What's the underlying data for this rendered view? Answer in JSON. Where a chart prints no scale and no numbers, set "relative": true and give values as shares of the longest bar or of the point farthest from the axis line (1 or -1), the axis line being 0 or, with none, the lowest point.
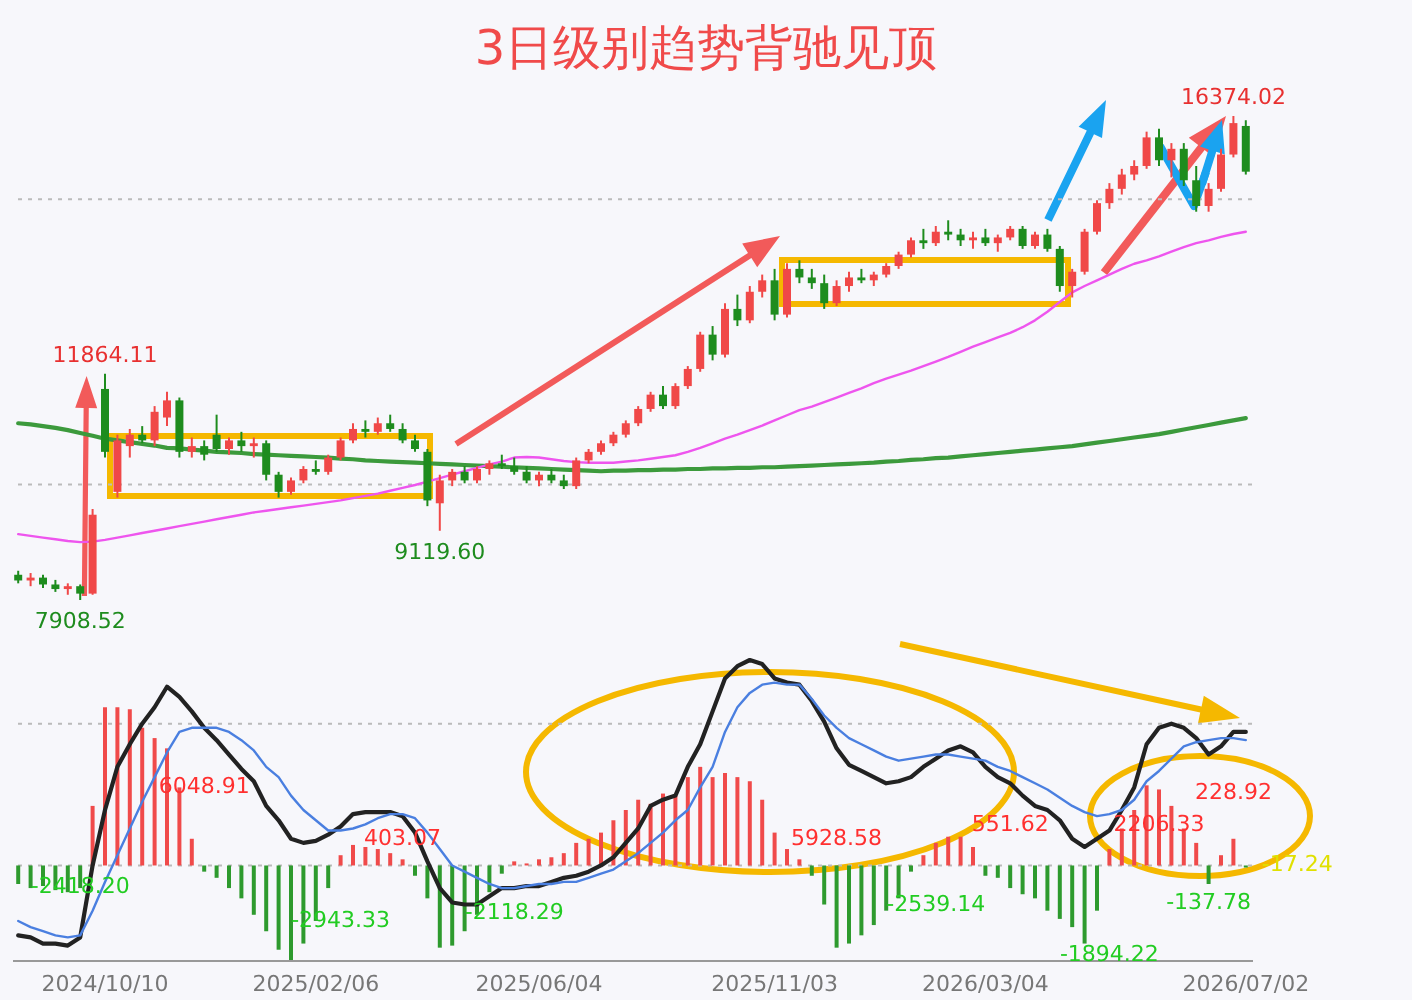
{
  "chart_data": [
    {
      "type": "candlestick",
      "title": "3日级别趋势背驰见顶",
      "tick_labels": false,
      "categories": [
        null,
        null,
        null,
        null,
        null,
        null,
        null,
        null,
        null,
        null,
        null,
        null,
        null,
        null,
        null,
        null,
        null,
        null,
        null,
        null,
        null,
        null,
        null,
        null,
        null,
        null,
        null,
        null,
        null,
        null,
        null,
        null,
        null,
        null,
        null,
        null,
        null,
        null,
        null,
        null,
        null,
        null,
        null,
        null,
        null,
        null,
        null,
        null,
        null,
        null,
        null,
        null,
        null,
        null,
        null,
        null,
        null,
        null,
        null,
        null,
        null,
        null,
        null,
        null,
        null,
        null,
        null,
        null,
        null,
        null,
        null,
        null,
        null,
        null,
        null,
        null,
        null,
        null,
        null,
        null,
        null,
        null,
        null,
        null,
        null,
        null,
        null,
        null,
        null,
        null,
        null,
        null,
        null,
        null,
        null,
        null,
        null,
        null,
        null,
        null
      ],
      "ohlc": [
        [
          8350,
          8420,
          8200,
          8250
        ],
        [
          8250,
          8380,
          8150,
          8300
        ],
        [
          8300,
          8350,
          8120,
          8180
        ],
        [
          8180,
          8260,
          8050,
          8100
        ],
        [
          8100,
          8200,
          8000,
          8150
        ],
        [
          8150,
          8180,
          7908.52,
          8020
        ],
        [
          8020,
          9500,
          8000,
          9400
        ],
        [
          11600,
          11864.11,
          10400,
          10500
        ],
        [
          9800,
          10800,
          9700,
          10700
        ],
        [
          10600,
          10900,
          10400,
          10800
        ],
        [
          10800,
          10950,
          10650,
          10700
        ],
        [
          10700,
          11300,
          10600,
          11200
        ],
        [
          11100,
          11550,
          10950,
          11400
        ],
        [
          11400,
          11450,
          10400,
          10500
        ],
        [
          10500,
          10750,
          10400,
          10600
        ],
        [
          10600,
          10700,
          10350,
          10450
        ],
        [
          10800,
          11150,
          10500,
          10550
        ],
        [
          10550,
          10750,
          10450,
          10700
        ],
        [
          10700,
          10850,
          10500,
          10600
        ],
        [
          10600,
          10750,
          10400,
          10650
        ],
        [
          10650,
          10700,
          10000,
          10100
        ],
        [
          10100,
          10150,
          9700,
          9800
        ],
        [
          9800,
          10050,
          9750,
          10000
        ],
        [
          10000,
          10250,
          9950,
          10200
        ],
        [
          10200,
          10350,
          10100,
          10150
        ],
        [
          10150,
          10450,
          10100,
          10400
        ],
        [
          10400,
          10750,
          10350,
          10700
        ],
        [
          10700,
          11000,
          10650,
          10900
        ],
        [
          10900,
          11050,
          10750,
          10850
        ],
        [
          10850,
          11100,
          10800,
          11000
        ],
        [
          11000,
          11150,
          10850,
          10900
        ],
        [
          10900,
          11000,
          10650,
          10700
        ],
        [
          10700,
          10800,
          10500,
          10550
        ],
        [
          10500,
          10550,
          9550,
          9650
        ],
        [
          9600,
          10100,
          9119.6,
          10000
        ],
        [
          10000,
          10200,
          9900,
          10150
        ],
        [
          10150,
          10250,
          9950,
          10000
        ],
        [
          10000,
          10250,
          9950,
          10200
        ],
        [
          10200,
          10350,
          10100,
          10300
        ],
        [
          10300,
          10450,
          10200,
          10250
        ],
        [
          10250,
          10400,
          10100,
          10150
        ],
        [
          10150,
          10250,
          9950,
          10000
        ],
        [
          10000,
          10150,
          9900,
          10100
        ],
        [
          10100,
          10200,
          9950,
          10000
        ],
        [
          10000,
          10100,
          9850,
          9900
        ],
        [
          9900,
          10400,
          9850,
          10350
        ],
        [
          10350,
          10550,
          10300,
          10500
        ],
        [
          10500,
          10700,
          10450,
          10650
        ],
        [
          10650,
          10850,
          10600,
          10800
        ],
        [
          10800,
          11050,
          10750,
          11000
        ],
        [
          11000,
          11300,
          10950,
          11250
        ],
        [
          11250,
          11550,
          11200,
          11500
        ],
        [
          11500,
          11650,
          11250,
          11300
        ],
        [
          11300,
          11700,
          11250,
          11650
        ],
        [
          11650,
          12000,
          11600,
          11950
        ],
        [
          11950,
          12600,
          11900,
          12550
        ],
        [
          12550,
          12700,
          12100,
          12200
        ],
        [
          12200,
          13100,
          12150,
          13000
        ],
        [
          13000,
          13250,
          12700,
          12800
        ],
        [
          12800,
          13400,
          12750,
          13300
        ],
        [
          13300,
          13600,
          13200,
          13500
        ],
        [
          13500,
          13700,
          12800,
          12900
        ],
        [
          12900,
          13800,
          12850,
          13700
        ],
        [
          13700,
          13850,
          13450,
          13550
        ],
        [
          13550,
          13700,
          13350,
          13450
        ],
        [
          13450,
          13600,
          13000,
          13100
        ],
        [
          13100,
          13500,
          13050,
          13400
        ],
        [
          13400,
          13650,
          13300,
          13550
        ],
        [
          13550,
          13700,
          13450,
          13500
        ],
        [
          13500,
          13650,
          13400,
          13600
        ],
        [
          13600,
          13800,
          13550,
          13750
        ],
        [
          13750,
          14000,
          13700,
          13950
        ],
        [
          13950,
          14250,
          13900,
          14200
        ],
        [
          14200,
          14400,
          14050,
          14150
        ],
        [
          14150,
          14450,
          14100,
          14350
        ],
        [
          14350,
          14550,
          14200,
          14300
        ],
        [
          14300,
          14400,
          14100,
          14200
        ],
        [
          14200,
          14350,
          14050,
          14250
        ],
        [
          14250,
          14400,
          14100,
          14150
        ],
        [
          14150,
          14300,
          14000,
          14250
        ],
        [
          14250,
          14450,
          14200,
          14400
        ],
        [
          14400,
          14450,
          14050,
          14100
        ],
        [
          14100,
          14350,
          14050,
          14300
        ],
        [
          14300,
          14400,
          14000,
          14050
        ],
        [
          14050,
          14100,
          13300,
          13400
        ],
        [
          13400,
          13700,
          13200,
          13650
        ],
        [
          13650,
          14400,
          13600,
          14350
        ],
        [
          14350,
          14900,
          14300,
          14850
        ],
        [
          14850,
          15200,
          14750,
          15100
        ],
        [
          15100,
          15450,
          15000,
          15350
        ],
        [
          15350,
          15600,
          15250,
          15500
        ],
        [
          15500,
          16100,
          15450,
          16000
        ],
        [
          16000,
          16150,
          15500,
          15600
        ],
        [
          15600,
          15900,
          15300,
          15800
        ],
        [
          15800,
          15900,
          15150,
          15250
        ],
        [
          15250,
          15500,
          14700,
          14800
        ],
        [
          14800,
          15200,
          14700,
          15100
        ],
        [
          15100,
          15800,
          15050,
          15700
        ],
        [
          15700,
          16374.02,
          15650,
          16250
        ],
        [
          16200,
          16300,
          15350,
          15400
        ]
      ],
      "colors": [
        "#1e8c1e",
        "#f04848",
        "#1e8c1e",
        "#1e8c1e",
        "#f04848",
        "#1e8c1e",
        "#f04848",
        "#1e8c1e",
        "#f04848",
        "#f04848",
        "#1e8c1e",
        "#f04848",
        "#f04848",
        "#1e8c1e",
        "#f04848",
        "#1e8c1e",
        "#1e8c1e",
        "#f04848",
        "#1e8c1e",
        "#f04848",
        "#1e8c1e",
        "#1e8c1e",
        "#f04848",
        "#f04848",
        "#1e8c1e",
        "#f04848",
        "#f04848",
        "#f04848",
        "#1e8c1e",
        "#f04848",
        "#1e8c1e",
        "#1e8c1e",
        "#1e8c1e",
        "#1e8c1e",
        "#f04848",
        "#f04848",
        "#1e8c1e",
        "#f04848",
        "#f04848",
        "#1e8c1e",
        "#1e8c1e",
        "#1e8c1e",
        "#f04848",
        "#1e8c1e",
        "#1e8c1e",
        "#f04848",
        "#f04848",
        "#f04848",
        "#f04848",
        "#f04848",
        "#f04848",
        "#f04848",
        "#1e8c1e",
        "#f04848",
        "#f04848",
        "#f04848",
        "#1e8c1e",
        "#f04848",
        "#1e8c1e",
        "#f04848",
        "#f04848",
        "#1e8c1e",
        "#f04848",
        "#1e8c1e",
        "#1e8c1e",
        "#1e8c1e",
        "#f04848",
        "#f04848",
        "#1e8c1e",
        "#f04848",
        "#f04848",
        "#f04848",
        "#f04848",
        "#1e8c1e",
        "#f04848",
        "#1e8c1e",
        "#1e8c1e",
        "#f04848",
        "#1e8c1e",
        "#f04848",
        "#f04848",
        "#1e8c1e",
        "#f04848",
        "#1e8c1e",
        "#1e8c1e",
        "#f04848",
        "#f04848",
        "#f04848",
        "#f04848",
        "#f04848",
        "#f04848",
        "#f04848",
        "#1e8c1e",
        "#f04848",
        "#1e8c1e",
        "#1e8c1e",
        "#f04848",
        "#f04848",
        "#f04848",
        "#1e8c1e"
      ],
      "series": [
        {
          "type": "line",
          "color": "#3c9a3c",
          "values": [
            11000,
            10980,
            10950,
            10920,
            10880,
            10830,
            10780,
            10730,
            10700,
            10670,
            10640,
            10610,
            10570,
            10560,
            10540,
            10520,
            10500,
            10490,
            10480,
            10460,
            10450,
            10440,
            10430,
            10420,
            10410,
            10400,
            10380,
            10370,
            10350,
            10340,
            10330,
            10320,
            10310,
            10300,
            10290,
            10280,
            10270,
            10260,
            10250,
            10240,
            10230,
            10220,
            10210,
            10200,
            10190,
            10180,
            10170,
            10160,
            10170,
            10170,
            10180,
            10180,
            10190,
            10190,
            10200,
            10200,
            10210,
            10210,
            10220,
            10220,
            10230,
            10230,
            10240,
            10250,
            10260,
            10270,
            10280,
            10290,
            10300,
            10310,
            10330,
            10340,
            10360,
            10370,
            10390,
            10400,
            10420,
            10440,
            10460,
            10480,
            10500,
            10520,
            10540,
            10560,
            10580,
            10600,
            10630,
            10660,
            10690,
            10720,
            10750,
            10780,
            10810,
            10850,
            10890,
            10930,
            10970,
            11010,
            11050,
            11090
          ]
        },
        {
          "type": "line",
          "color": "#ee55ee",
          "values": [
            9060,
            9030,
            9000,
            8970,
            8940,
            8920,
            8930,
            8960,
            9000,
            9040,
            9080,
            9120,
            9160,
            9200,
            9240,
            9280,
            9320,
            9360,
            9400,
            9440,
            9470,
            9500,
            9530,
            9560,
            9590,
            9620,
            9650,
            9690,
            9730,
            9770,
            9820,
            9870,
            9920,
            9980,
            10040,
            10100,
            10160,
            10220,
            10280,
            10330,
            10400,
            10410,
            10400,
            10370,
            10340,
            10320,
            10310,
            10310,
            10310,
            10330,
            10350,
            10380,
            10410,
            10440,
            10500,
            10570,
            10650,
            10730,
            10800,
            10880,
            10960,
            11050,
            11140,
            11230,
            11290,
            11370,
            11450,
            11530,
            11610,
            11700,
            11780,
            11850,
            11920,
            12000,
            12080,
            12160,
            12250,
            12340,
            12420,
            12500,
            12580,
            12680,
            12800,
            12950,
            13120,
            13290,
            13400,
            13500,
            13600,
            13700,
            13790,
            13850,
            13920,
            14000,
            14080,
            14150,
            14200,
            14260,
            14310,
            14350
          ]
        }
      ],
      "ref_lines": [
        {
          "axis": "y",
          "value": 9930,
          "line_style": "dotted",
          "color": "#bbbbbb"
        },
        {
          "axis": "y",
          "value": 14920,
          "line_style": "dotted",
          "color": "#bbbbbb"
        }
      ],
      "annotations": [
        "11864.11",
        "9119.60",
        "7908.52",
        "16374.02"
      ]
    },
    {
      "type": "bar",
      "relative": true,
      "tick_labels": "x",
      "categories": [
        null,
        null,
        null,
        null,
        null,
        null,
        null,
        "2024/10/10",
        null,
        null,
        null,
        null,
        null,
        null,
        null,
        null,
        null,
        null,
        null,
        null,
        null,
        null,
        null,
        null,
        "2025/02/06",
        null,
        null,
        null,
        null,
        null,
        null,
        null,
        null,
        null,
        null,
        null,
        null,
        null,
        null,
        null,
        null,
        null,
        "2025/06/04",
        null,
        null,
        null,
        null,
        null,
        null,
        null,
        null,
        null,
        null,
        null,
        null,
        null,
        null,
        null,
        null,
        null,
        null,
        "2025/11/03",
        null,
        null,
        null,
        null,
        null,
        null,
        null,
        null,
        null,
        null,
        null,
        null,
        null,
        null,
        null,
        null,
        "2026/03/04",
        null,
        null,
        null,
        null,
        null,
        null,
        null,
        null,
        null,
        null,
        null,
        null,
        null,
        null,
        null,
        null,
        null,
        null,
        null,
        null,
        "2026/07/02"
      ],
      "series": [
        {
          "type": "bar",
          "values": [
            -0.09,
            -0.11,
            -0.1,
            -0.12,
            -0.13,
            -0.11,
            0.29,
            0.77,
            0.77,
            0.76,
            0.67,
            0.62,
            0.57,
            0.38,
            0.13,
            -0.03,
            -0.06,
            -0.11,
            -0.16,
            -0.24,
            -0.32,
            -0.41,
            -0.46,
            -0.38,
            -0.27,
            -0.11,
            0.05,
            0.1,
            0.09,
            0.08,
            0.06,
            0.03,
            -0.05,
            -0.16,
            -0.4,
            -0.39,
            -0.32,
            -0.24,
            -0.13,
            -0.04,
            0.02,
            0.01,
            0.03,
            0.04,
            0.06,
            0.11,
            0.13,
            0.16,
            0.22,
            0.27,
            0.32,
            0.3,
            0.35,
            0.34,
            0.43,
            0.48,
            0.43,
            0.45,
            0.43,
            0.41,
            0.32,
            0.16,
            0.08,
            0.03,
            -0.05,
            -0.19,
            -0.4,
            -0.38,
            -0.34,
            -0.29,
            -0.22,
            -0.16,
            -0.03,
            0.05,
            0.11,
            0.14,
            0.14,
            0.09,
            -0.05,
            -0.06,
            -0.11,
            -0.14,
            -0.16,
            -0.22,
            -0.26,
            -0.3,
            -0.38,
            -0.22,
            0.08,
            0.18,
            0.27,
            0.39,
            0.37,
            0.29,
            0.18,
            0.11,
            -0.09,
            0.05,
            0.13,
            -0.01
          ],
          "colors": [
            "#2e9a2e",
            "#2e9a2e",
            "#2e9a2e",
            "#2e9a2e",
            "#2e9a2e",
            "#2e9a2e",
            "#f04a4a",
            "#f04a4a",
            "#f04a4a",
            "#f04a4a",
            "#f04a4a",
            "#f04a4a",
            "#f04a4a",
            "#f04a4a",
            "#f04a4a",
            "#2e9a2e",
            "#2e9a2e",
            "#2e9a2e",
            "#2e9a2e",
            "#2e9a2e",
            "#2e9a2e",
            "#2e9a2e",
            "#2e9a2e",
            "#2e9a2e",
            "#2e9a2e",
            "#2e9a2e",
            "#f04a4a",
            "#f04a4a",
            "#f04a4a",
            "#f04a4a",
            "#f04a4a",
            "#f04a4a",
            "#2e9a2e",
            "#2e9a2e",
            "#2e9a2e",
            "#2e9a2e",
            "#2e9a2e",
            "#2e9a2e",
            "#2e9a2e",
            "#2e9a2e",
            "#f04a4a",
            "#f04a4a",
            "#f04a4a",
            "#f04a4a",
            "#f04a4a",
            "#f04a4a",
            "#f04a4a",
            "#f04a4a",
            "#f04a4a",
            "#f04a4a",
            "#f04a4a",
            "#f04a4a",
            "#f04a4a",
            "#f04a4a",
            "#f04a4a",
            "#f04a4a",
            "#f04a4a",
            "#f04a4a",
            "#f04a4a",
            "#f04a4a",
            "#f04a4a",
            "#f04a4a",
            "#f04a4a",
            "#f04a4a",
            "#2e9a2e",
            "#2e9a2e",
            "#2e9a2e",
            "#2e9a2e",
            "#2e9a2e",
            "#2e9a2e",
            "#2e9a2e",
            "#2e9a2e",
            "#2e9a2e",
            "#f04a4a",
            "#f04a4a",
            "#f04a4a",
            "#f04a4a",
            "#f04a4a",
            "#2e9a2e",
            "#2e9a2e",
            "#2e9a2e",
            "#2e9a2e",
            "#2e9a2e",
            "#2e9a2e",
            "#2e9a2e",
            "#2e9a2e",
            "#2e9a2e",
            "#2e9a2e",
            "#f04a4a",
            "#f04a4a",
            "#f04a4a",
            "#f04a4a",
            "#f04a4a",
            "#f04a4a",
            "#f04a4a",
            "#f04a4a",
            "#2e9a2e",
            "#f04a4a",
            "#f04a4a",
            "#2e9a2e"
          ]
        },
        {
          "type": "line",
          "color": "#222222",
          "values": [
            -0.34,
            -0.35,
            -0.38,
            -0.38,
            -0.39,
            -0.35,
            0,
            0.27,
            0.48,
            0.59,
            0.69,
            0.77,
            0.87,
            0.82,
            0.75,
            0.67,
            0.61,
            0.54,
            0.47,
            0.41,
            0.29,
            0.22,
            0.13,
            0.11,
            0.12,
            0.15,
            0.19,
            0.25,
            0.26,
            0.26,
            0.26,
            0.24,
            0.16,
            0.02,
            -0.11,
            -0.18,
            -0.19,
            -0.19,
            -0.15,
            -0.11,
            -0.11,
            -0.1,
            -0.1,
            -0.08,
            -0.06,
            -0.05,
            -0.03,
            0,
            0.04,
            0.11,
            0.18,
            0.29,
            0.32,
            0.34,
            0.48,
            0.59,
            0.75,
            0.91,
            0.97,
            1,
            0.98,
            0.91,
            0.89,
            0.88,
            0.8,
            0.7,
            0.57,
            0.49,
            0.46,
            0.43,
            0.4,
            0.41,
            0.43,
            0.48,
            0.52,
            0.56,
            0.58,
            0.55,
            0.48,
            0.43,
            0.4,
            0.34,
            0.29,
            0.27,
            0.22,
            0.13,
            0.09,
            0.13,
            0.17,
            0.27,
            0.38,
            0.59,
            0.67,
            0.69,
            0.67,
            0.62,
            0.54,
            0.58,
            0.65,
            0.65
          ]
        },
        {
          "type": "line",
          "color": "#4a7fe0",
          "values": [
            -0.27,
            -0.3,
            -0.32,
            -0.34,
            -0.35,
            -0.34,
            -0.22,
            -0.08,
            0.05,
            0.18,
            0.31,
            0.43,
            0.55,
            0.65,
            0.67,
            0.67,
            0.67,
            0.65,
            0.61,
            0.56,
            0.48,
            0.43,
            0.34,
            0.27,
            0.22,
            0.17,
            0.17,
            0.18,
            0.2,
            0.23,
            0.25,
            0.25,
            0.23,
            0.16,
            0.08,
            0,
            -0.03,
            -0.06,
            -0.09,
            -0.11,
            -0.11,
            -0.1,
            -0.09,
            -0.09,
            -0.08,
            -0.08,
            -0.06,
            -0.04,
            -0.02,
            0.02,
            0.06,
            0.11,
            0.16,
            0.22,
            0.27,
            0.38,
            0.48,
            0.65,
            0.77,
            0.84,
            0.88,
            0.89,
            0.88,
            0.88,
            0.81,
            0.73,
            0.67,
            0.62,
            0.59,
            0.56,
            0.53,
            0.51,
            0.52,
            0.53,
            0.54,
            0.54,
            0.53,
            0.52,
            0.51,
            0.48,
            0.46,
            0.43,
            0.4,
            0.37,
            0.33,
            0.29,
            0.26,
            0.24,
            0.25,
            0.27,
            0.32,
            0.41,
            0.46,
            0.52,
            0.58,
            0.6,
            0.61,
            0.62,
            0.62,
            0.61
          ]
        }
      ],
      "ref_lines": [
        {
          "axis": "y",
          "value": 0,
          "line_style": "dotted",
          "color": "#bbbbbb"
        },
        {
          "axis": "y",
          "value": 0.69,
          "line_style": "dotted",
          "color": "#bbbbbb"
        }
      ],
      "annotations": [
        "-2418.20",
        "6048.91",
        "-2943.33",
        "403.07",
        "-2118.29",
        "5928.58",
        "-2539.14",
        "551.62",
        "-1894.22",
        "2206.33",
        "-137.78",
        "228.92",
        "-17.24"
      ]
    }
  ]
}
